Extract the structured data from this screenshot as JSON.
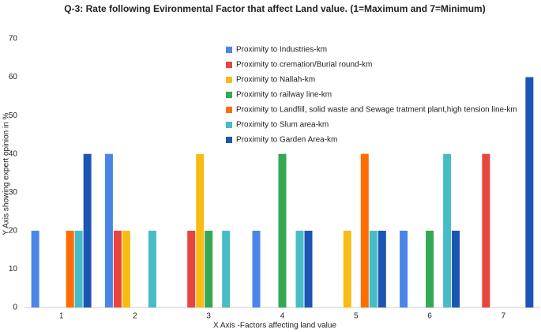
{
  "chart_data": {
    "type": "bar",
    "title": "Q-3: Rate following Evironmental Factor that affect Land value. (1=Maximum and 7=Minimum)",
    "x_label": "X Axis -Factors affecting land value",
    "y_label": "Y Axis showing expert opinion in %",
    "categories": [
      "1",
      "2",
      "3",
      "4",
      "5",
      "6",
      "7"
    ],
    "series": [
      {
        "name": "Proximity to Industries-km",
        "color": "#4a86e8",
        "values": [
          20,
          40,
          0,
          20,
          0,
          20,
          0
        ]
      },
      {
        "name": "Proximity to cremation/Burial round-km",
        "color": "#e8453c",
        "values": [
          0,
          20,
          20,
          0,
          0,
          0,
          40
        ]
      },
      {
        "name": "Proximity to Nallah-km",
        "color": "#f9bc15",
        "values": [
          0,
          20,
          40,
          0,
          20,
          0,
          0
        ]
      },
      {
        "name": "Proximity to railway line-km",
        "color": "#34a853",
        "values": [
          0,
          0,
          20,
          40,
          0,
          20,
          0
        ]
      },
      {
        "name": "Proximity to Landfill, solid waste and Sewage tratment plant,high tension line-km",
        "color": "#ff6d01",
        "values": [
          20,
          0,
          0,
          0,
          40,
          0,
          0
        ]
      },
      {
        "name": "Proximity to Slum area-km",
        "color": "#46bdc6",
        "values": [
          20,
          20,
          20,
          20,
          20,
          40,
          0
        ]
      },
      {
        "name": "Proximity to Garden Area-km",
        "color": "#1c55b3",
        "values": [
          40,
          0,
          0,
          20,
          20,
          20,
          60
        ]
      }
    ],
    "ylim": [
      0,
      70
    ],
    "yticks": [
      0,
      10,
      20,
      30,
      40,
      50,
      60,
      70
    ],
    "grid": false
  }
}
